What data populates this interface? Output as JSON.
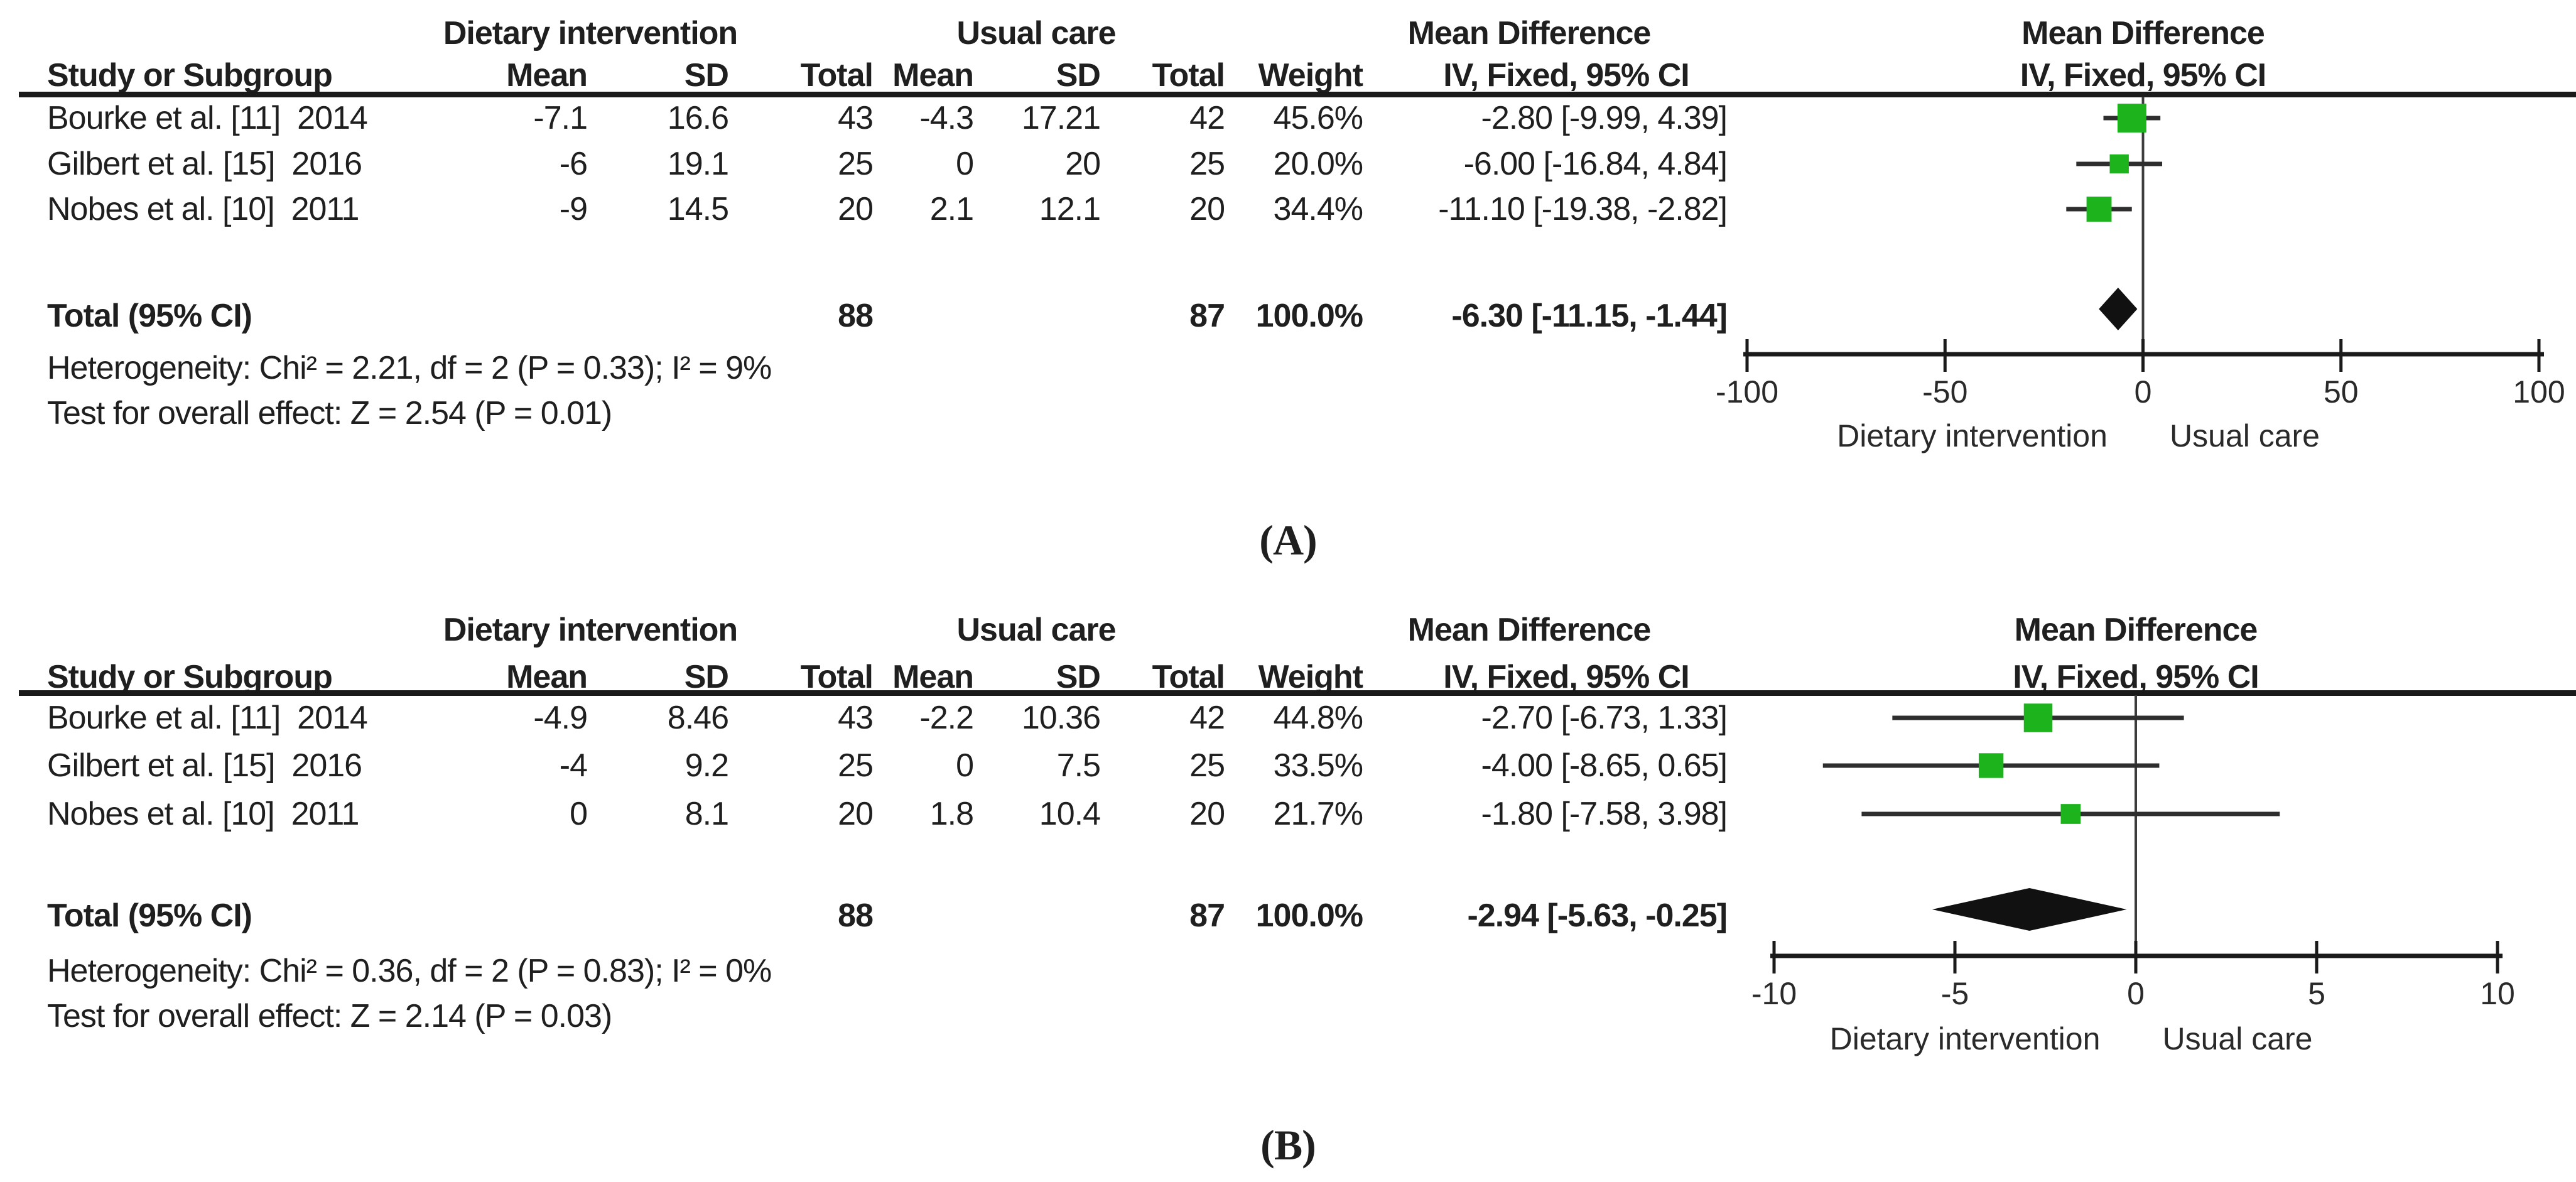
{
  "colors": {
    "marker_green": "#1db31d",
    "diamond_black": "#111111",
    "line_black": "#1f1f1f",
    "whisker_gray": "#2e2e2e"
  },
  "panels": [
    {
      "panel_label": "(A)",
      "group1_header": "Dietary intervention",
      "group2_header": "Usual care",
      "md_header": "Mean Difference",
      "iv_header": "IV, Fixed, 95% CI",
      "cols": {
        "study": "Study or Subgroup",
        "mean": "Mean",
        "sd": "SD",
        "total": "Total",
        "weight": "Weight"
      },
      "rows": [
        {
          "study": "Bourke et al. [11]  2014",
          "mean1": "-7.1",
          "sd1": "16.6",
          "total1": "43",
          "mean2": "-4.3",
          "sd2": "17.21",
          "total2": "42",
          "weight": "45.6%",
          "ci": "-2.80 [-9.99, 4.39]"
        },
        {
          "study": "Gilbert et al. [15]  2016",
          "mean1": "-6",
          "sd1": "19.1",
          "total1": "25",
          "mean2": "0",
          "sd2": "20",
          "total2": "25",
          "weight": "20.0%",
          "ci": "-6.00 [-16.84, 4.84]"
        },
        {
          "study": "Nobes et al. [10]  2011",
          "mean1": "-9",
          "sd1": "14.5",
          "total1": "20",
          "mean2": "2.1",
          "sd2": "12.1",
          "total2": "20",
          "weight": "34.4%",
          "ci": "-11.10 [-19.38, -2.82]"
        }
      ],
      "total_row": {
        "label": "Total (95% CI)",
        "total1": "88",
        "total2": "87",
        "weight": "100.0%",
        "ci": "-6.30 [-11.15, -1.44]"
      },
      "heterogeneity": "Heterogeneity: Chi² = 2.21, df = 2 (P = 0.33); I² = 9%",
      "overall_test": "Test for overall effect: Z = 2.54 (P = 0.01)",
      "footer_left": "Dietary intervention",
      "footer_right": "Usual care"
    },
    {
      "panel_label": "(B)",
      "group1_header": "Dietary intervention",
      "group2_header": "Usual care",
      "md_header": "Mean Difference",
      "iv_header": "IV, Fixed, 95% CI",
      "cols": {
        "study": "Study or Subgroup",
        "mean": "Mean",
        "sd": "SD",
        "total": "Total",
        "weight": "Weight"
      },
      "rows": [
        {
          "study": "Bourke et al. [11]  2014",
          "mean1": "-4.9",
          "sd1": "8.46",
          "total1": "43",
          "mean2": "-2.2",
          "sd2": "10.36",
          "total2": "42",
          "weight": "44.8%",
          "ci": "-2.70 [-6.73, 1.33]"
        },
        {
          "study": "Gilbert et al. [15]  2016",
          "mean1": "-4",
          "sd1": "9.2",
          "total1": "25",
          "mean2": "0",
          "sd2": "7.5",
          "total2": "25",
          "weight": "33.5%",
          "ci": "-4.00 [-8.65, 0.65]"
        },
        {
          "study": "Nobes et al. [10]  2011",
          "mean1": "0",
          "sd1": "8.1",
          "total1": "20",
          "mean2": "1.8",
          "sd2": "10.4",
          "total2": "20",
          "weight": "21.7%",
          "ci": "-1.80 [-7.58, 3.98]"
        }
      ],
      "total_row": {
        "label": "Total (95% CI)",
        "total1": "88",
        "total2": "87",
        "weight": "100.0%",
        "ci": "-2.94 [-5.63, -0.25]"
      },
      "heterogeneity": "Heterogeneity: Chi² = 0.36, df = 2 (P = 0.83); I² = 0%",
      "overall_test": "Test for overall effect: Z = 2.14 (P = 0.03)",
      "footer_left": "Dietary intervention",
      "footer_right": "Usual care"
    }
  ],
  "chart_data": [
    {
      "type": "scatter",
      "subtype": "forest-plot",
      "panel": "A",
      "title": "Mean Difference IV, Fixed, 95% CI",
      "studies": [
        "Bourke et al. [11] 2014",
        "Gilbert et al. [15] 2016",
        "Nobes et al. [10] 2011"
      ],
      "estimates": [
        -2.8,
        -6.0,
        -11.1
      ],
      "ci_low": [
        -9.99,
        -16.84,
        -19.38
      ],
      "ci_high": [
        4.39,
        4.84,
        -2.82
      ],
      "weights_pct": [
        45.6,
        20.0,
        34.4
      ],
      "total": {
        "estimate": -6.3,
        "ci_low": -11.15,
        "ci_high": -1.44
      },
      "axis": {
        "min": -100,
        "max": 100,
        "ticks": [
          -100,
          -50,
          0,
          50,
          100
        ]
      },
      "xlabel_left": "Dietary intervention",
      "xlabel_right": "Usual care",
      "marker_color": "#1db31d"
    },
    {
      "type": "scatter",
      "subtype": "forest-plot",
      "panel": "B",
      "title": "Mean Difference IV, Fixed, 95% CI",
      "studies": [
        "Bourke et al. [11] 2014",
        "Gilbert et al. [15] 2016",
        "Nobes et al. [10] 2011"
      ],
      "estimates": [
        -2.7,
        -4.0,
        -1.8
      ],
      "ci_low": [
        -6.73,
        -8.65,
        -7.58
      ],
      "ci_high": [
        1.33,
        0.65,
        3.98
      ],
      "weights_pct": [
        44.8,
        33.5,
        21.7
      ],
      "total": {
        "estimate": -2.94,
        "ci_low": -5.63,
        "ci_high": -0.25
      },
      "axis": {
        "min": -10,
        "max": 10,
        "ticks": [
          -10,
          -5,
          0,
          5,
          10
        ]
      },
      "xlabel_left": "Dietary intervention",
      "xlabel_right": "Usual care",
      "marker_color": "#1db31d"
    }
  ]
}
